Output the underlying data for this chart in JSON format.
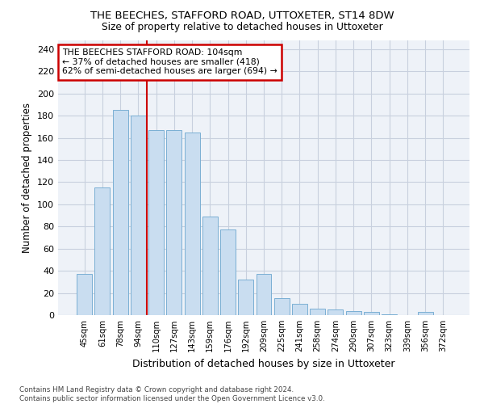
{
  "title1": "THE BEECHES, STAFFORD ROAD, UTTOXETER, ST14 8DW",
  "title2": "Size of property relative to detached houses in Uttoxeter",
  "xlabel": "Distribution of detached houses by size in Uttoxeter",
  "ylabel": "Number of detached properties",
  "categories": [
    "45sqm",
    "61sqm",
    "78sqm",
    "94sqm",
    "110sqm",
    "127sqm",
    "143sqm",
    "159sqm",
    "176sqm",
    "192sqm",
    "209sqm",
    "225sqm",
    "241sqm",
    "258sqm",
    "274sqm",
    "290sqm",
    "307sqm",
    "323sqm",
    "339sqm",
    "356sqm",
    "372sqm"
  ],
  "values": [
    37,
    115,
    185,
    180,
    167,
    167,
    165,
    89,
    77,
    32,
    37,
    15,
    10,
    6,
    5,
    4,
    3,
    1,
    0,
    3,
    0
  ],
  "bar_color": "#c9ddf0",
  "bar_edge_color": "#7aafd4",
  "vline_x": 4.0,
  "vline_color": "#cc0000",
  "annotation_text": "THE BEECHES STAFFORD ROAD: 104sqm\n← 37% of detached houses are smaller (418)\n62% of semi-detached houses are larger (694) →",
  "annotation_box_color": "#ffffff",
  "annotation_box_edge": "#cc0000",
  "bg_color": "#eef2f8",
  "grid_color": "#c8d0de",
  "footer": "Contains HM Land Registry data © Crown copyright and database right 2024.\nContains public sector information licensed under the Open Government Licence v3.0.",
  "ylim": [
    0,
    248
  ],
  "yticks": [
    0,
    20,
    40,
    60,
    80,
    100,
    120,
    140,
    160,
    180,
    200,
    220,
    240
  ]
}
